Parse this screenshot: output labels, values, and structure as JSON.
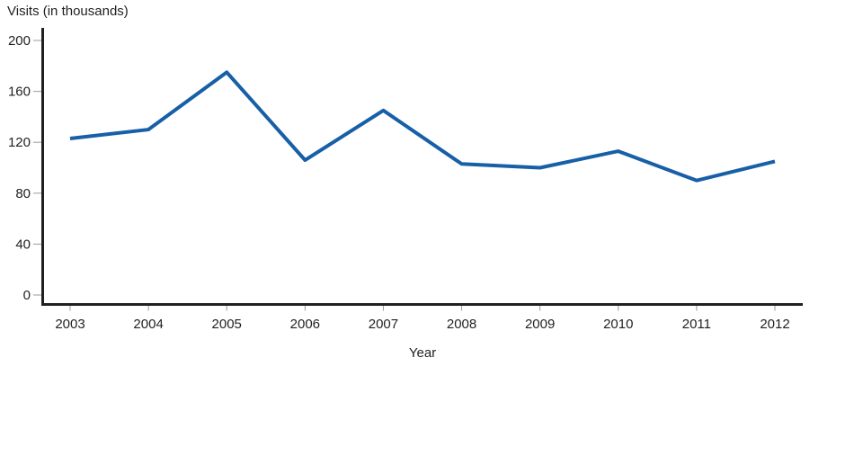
{
  "chart_data": {
    "type": "line",
    "ylabel": "Visits (in thousands)",
    "xlabel": "Year",
    "categories": [
      "2003",
      "2004",
      "2005",
      "2006",
      "2007",
      "2008",
      "2009",
      "2010",
      "2011",
      "2012"
    ],
    "values": [
      123,
      130,
      175,
      106,
      145,
      103,
      100,
      113,
      90,
      105
    ],
    "ylim": [
      0,
      200
    ],
    "yticks": [
      0,
      40,
      80,
      120,
      160,
      200
    ],
    "grid": false,
    "legend": "none",
    "line_color": "#175fa6",
    "axis_color": "#231f20",
    "tick_color": "#9b9b9b",
    "text_color": "#231f20"
  }
}
